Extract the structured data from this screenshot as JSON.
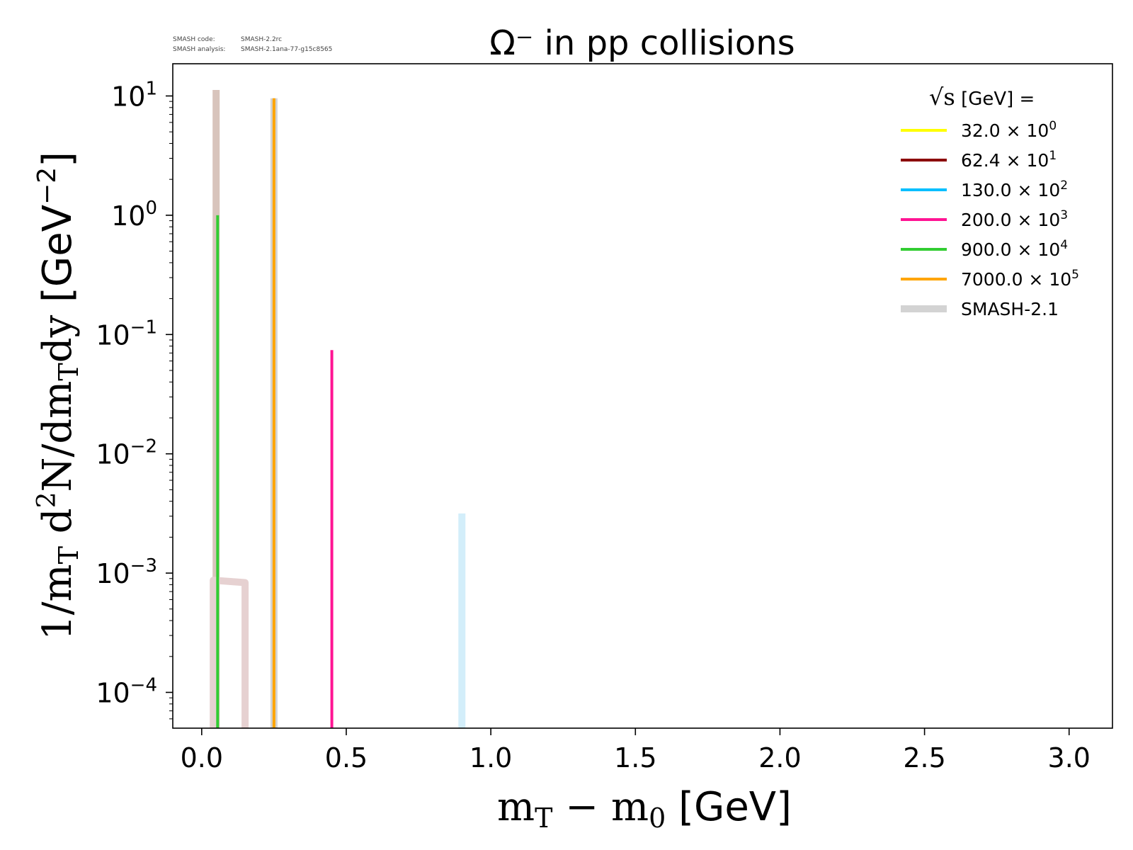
{
  "header": {
    "code_label": "SMASH code:",
    "code_value": "SMASH-2.2rc",
    "analysis_label": "SMASH analysis:",
    "analysis_value": "SMASH-2.1ana-77-g15c8565"
  },
  "chart_data": {
    "type": "line",
    "title": "Ω⁻ in pp collisions",
    "xlabel": {
      "a": "m",
      "a_sub": "T",
      "op": " − ",
      "b": "m",
      "b_sub": "0",
      "unit": " [GeV]"
    },
    "ylabel": {
      "pre": "1/m",
      "pre_sub": "T",
      "mid": " d",
      "sup": "2",
      "mid2": "N/dm",
      "mid_sub": "T",
      "end": "dy",
      "unit_pre": " [GeV",
      "unit_sup": "−2",
      "unit_end": "]"
    },
    "xlim": [
      -0.1,
      3.15
    ],
    "ylim_log10": [
      -4.3,
      1.27
    ],
    "y_scale": "log",
    "grid": false,
    "x_ticks": [
      {
        "value": 0.0,
        "label": "0.0"
      },
      {
        "value": 0.5,
        "label": "0.5"
      },
      {
        "value": 1.0,
        "label": "1.0"
      },
      {
        "value": 1.5,
        "label": "1.5"
      },
      {
        "value": 2.0,
        "label": "2.0"
      },
      {
        "value": 2.5,
        "label": "2.5"
      },
      {
        "value": 3.0,
        "label": "3.0"
      }
    ],
    "y_ticks": [
      {
        "exp": 1,
        "base": "10",
        "sup": "1"
      },
      {
        "exp": 0,
        "base": "10",
        "sup": "0"
      },
      {
        "exp": -1,
        "base": "10",
        "sup": "−1"
      },
      {
        "exp": -2,
        "base": "10",
        "sup": "−2"
      },
      {
        "exp": -3,
        "base": "10",
        "sup": "−3"
      },
      {
        "exp": -4,
        "base": "10",
        "sup": "−4"
      }
    ],
    "legend": {
      "placement": "top-right",
      "title_prefix": "√s",
      "title_suffix": " [GeV] =",
      "entries": [
        {
          "name": "32.0 × 10",
          "sup": "0",
          "color": "#ffff00",
          "kind": "line"
        },
        {
          "name": "62.4 × 10",
          "sup": "1",
          "color": "#8b0000",
          "kind": "line"
        },
        {
          "name": "130.0 × 10",
          "sup": "2",
          "color": "#00bfff",
          "kind": "line"
        },
        {
          "name": "200.0 × 10",
          "sup": "3",
          "color": "#ff1493",
          "kind": "line"
        },
        {
          "name": "900.0 × 10",
          "sup": "4",
          "color": "#32cd32",
          "kind": "line"
        },
        {
          "name": "7000.0 × 10",
          "sup": "5",
          "color": "#ffa500",
          "kind": "line"
        },
        {
          "name": "SMASH-2.1",
          "sup": "",
          "color": "#d3d3d3",
          "kind": "band"
        }
      ]
    },
    "series": [
      {
        "color": "#d8c4bc",
        "kind": "band",
        "points": [
          [
            0.05,
            -4.3
          ],
          [
            0.05,
            1.05
          ]
        ]
      },
      {
        "color": "#e6d1d1",
        "kind": "band",
        "points": [
          [
            0.04,
            -4.3
          ],
          [
            0.04,
            -3.06
          ],
          [
            0.15,
            -3.08
          ],
          [
            0.15,
            -4.3
          ]
        ]
      },
      {
        "color": "#d3d3d3",
        "kind": "band",
        "points": [
          [
            0.25,
            -4.3
          ],
          [
            0.25,
            0.98
          ]
        ]
      },
      {
        "color": "#d3eefa",
        "kind": "band",
        "points": [
          [
            0.9,
            -4.3
          ],
          [
            0.9,
            -2.5
          ]
        ]
      },
      {
        "color": "#32cd32",
        "kind": "line",
        "points": [
          [
            0.055,
            -4.3
          ],
          [
            0.055,
            0.0
          ]
        ]
      },
      {
        "color": "#ffa500",
        "kind": "line",
        "points": [
          [
            0.25,
            -4.3
          ],
          [
            0.25,
            0.98
          ]
        ]
      },
      {
        "color": "#ff1493",
        "kind": "line",
        "points": [
          [
            0.45,
            -4.3
          ],
          [
            0.45,
            -1.13
          ]
        ]
      }
    ]
  }
}
